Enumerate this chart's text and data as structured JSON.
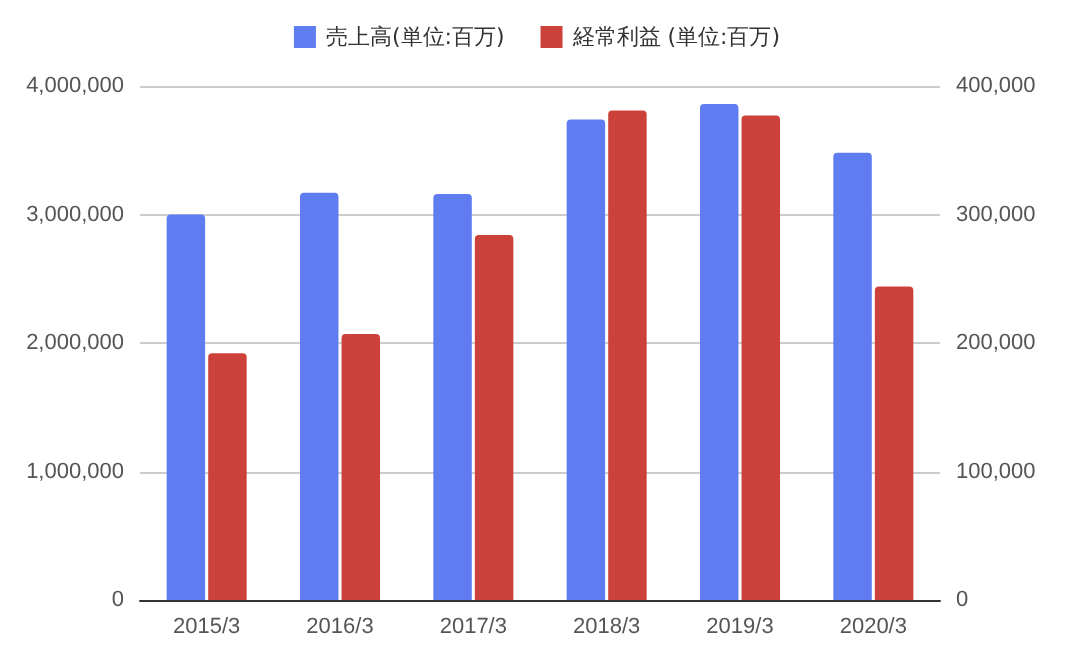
{
  "chart_data": {
    "type": "bar",
    "categories": [
      "2015/3",
      "2016/3",
      "2017/3",
      "2018/3",
      "2019/3",
      "2020/3"
    ],
    "series": [
      {
        "name": "売上高(単位:百万)",
        "color": "#5f7cf0",
        "values": [
          3000000,
          3170000,
          3160000,
          3740000,
          3860000,
          3480000
        ]
      },
      {
        "name": "経常利益 (単位:百万)",
        "color": "#cc4139",
        "values": [
          192000,
          207000,
          284000,
          381000,
          377000,
          244000
        ],
        "axis": "y2"
      }
    ],
    "ylim": [
      0,
      4000000
    ],
    "yticks": [
      0,
      {
        "value": 1000000,
        "label": "1,000,000"
      },
      {
        "value": 2000000,
        "label": "2,000,000"
      },
      {
        "value": 3000000,
        "label": "3,000,000"
      },
      {
        "value": 4000000,
        "label": "4,000,000"
      }
    ],
    "y2lim": [
      0,
      400000
    ],
    "y2ticks": [
      0,
      {
        "value": 100000,
        "label": "100,000"
      },
      {
        "value": 200000,
        "label": "200,000"
      },
      {
        "value": 300000,
        "label": "300,000"
      },
      {
        "value": 400000,
        "label": "400,000"
      }
    ],
    "grid": "y",
    "legend": "top"
  }
}
